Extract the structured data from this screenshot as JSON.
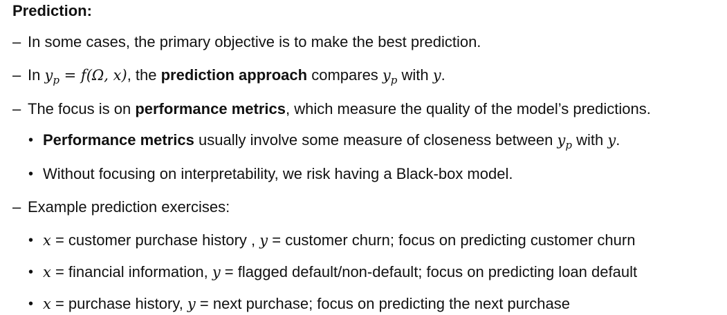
{
  "title": "Prediction:",
  "markers": {
    "dash": "–",
    "dot": "•"
  },
  "items": {
    "objective": "In some cases, the primary objective is to make the best prediction.",
    "approach": {
      "prefix": "In ",
      "y": "y",
      "p": "p",
      "equals": " = ",
      "func": "f",
      "args": "(Ω, x)",
      "comma": ", the ",
      "bold": "prediction approach",
      "middle": " compares ",
      "with": " with ",
      "end": "."
    },
    "focus": {
      "prefix": "The focus is on ",
      "bold": "performance metrics",
      "suffix": ", which measure the quality of the model’s predictions."
    },
    "metrics": {
      "bold": "Performance metrics",
      "middle": " usually involve some measure of closeness between ",
      "with": " with ",
      "end": "."
    },
    "blackbox": "Without focusing on interpretability, we risk having a Black-box model.",
    "examples_heading": "Example prediction exercises:",
    "examples": [
      {
        "x": "x",
        "text1": " = customer purchase history , ",
        "y": "y",
        "text2": " = customer churn; focus on predicting customer churn"
      },
      {
        "x": "x",
        "text1": " = financial information, ",
        "y": "y",
        "text2": " = flagged default/non-default; focus on predicting loan default"
      },
      {
        "x": "x",
        "text1": " = purchase history, ",
        "y": "y",
        "text2": " = next purchase; focus on predicting the next purchase"
      }
    ]
  }
}
